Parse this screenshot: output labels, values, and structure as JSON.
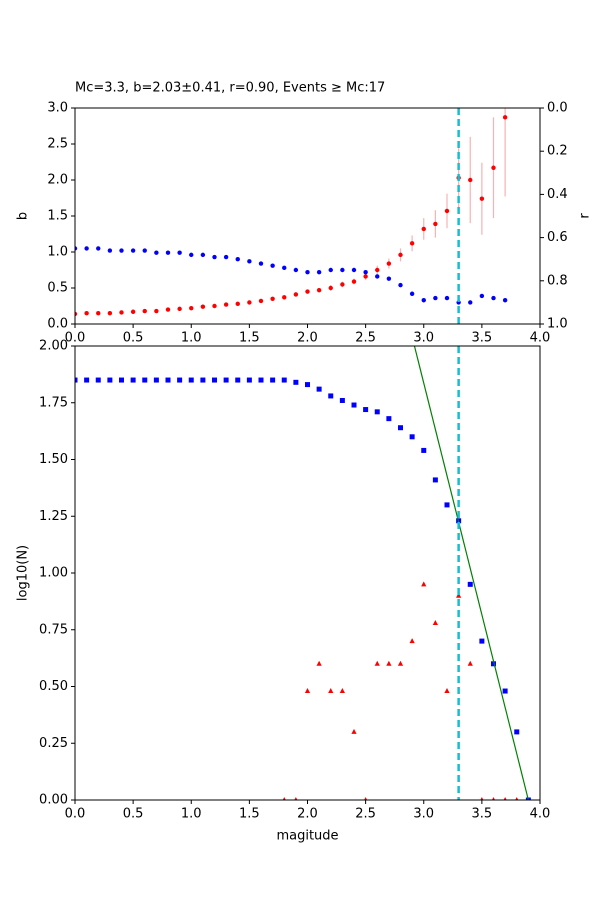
{
  "chart_data": [
    {
      "type": "scatter",
      "title": "Mc=3.3, b=2.03±0.41, r=0.90, Events ≥ Mc:17",
      "ylabel": "b",
      "y2label": "r",
      "xlim": [
        0,
        4
      ],
      "ylim": [
        0,
        3
      ],
      "y2lim": [
        1,
        0
      ],
      "xticks": [
        {
          "value": 0,
          "label": "0.0"
        },
        {
          "value": 0.5,
          "label": "0.5"
        },
        {
          "value": 1,
          "label": "1.0"
        },
        {
          "value": 1.5,
          "label": "1.5"
        },
        {
          "value": 2,
          "label": "2.0"
        },
        {
          "value": 2.5,
          "label": "2.5"
        },
        {
          "value": 3,
          "label": "3.0"
        },
        {
          "value": 3.5,
          "label": "3.5"
        },
        {
          "value": 4,
          "label": "4.0"
        }
      ],
      "yticks": [
        {
          "value": 0,
          "label": "0.0"
        },
        {
          "value": 0.5,
          "label": "0.5"
        },
        {
          "value": 1,
          "label": "1.0"
        },
        {
          "value": 1.5,
          "label": "1.5"
        },
        {
          "value": 2,
          "label": "2.0"
        },
        {
          "value": 2.5,
          "label": "2.5"
        },
        {
          "value": 3,
          "label": "3.0"
        }
      ],
      "y2ticks": [
        {
          "value": 0,
          "label": "0.0"
        },
        {
          "value": 0.2,
          "label": "0.2"
        },
        {
          "value": 0.4,
          "label": "0.4"
        },
        {
          "value": 0.6,
          "label": "0.6"
        },
        {
          "value": 0.8,
          "label": "0.8"
        },
        {
          "value": 1,
          "label": "1.0"
        }
      ],
      "vline": 3.3,
      "vline_color": "#17becf",
      "series": [
        {
          "marker": "o",
          "color": "#ff0000",
          "error_color": "#f6b3b3",
          "x": [
            0,
            0.1,
            0.2,
            0.3,
            0.4,
            0.5,
            0.6,
            0.7,
            0.8,
            0.9,
            1.0,
            1.1,
            1.2,
            1.3,
            1.4,
            1.5,
            1.6,
            1.7,
            1.8,
            1.9,
            2.0,
            2.1,
            2.2,
            2.3,
            2.4,
            2.5,
            2.6,
            2.7,
            2.8,
            2.9,
            3.0,
            3.1,
            3.2,
            3.3,
            3.4,
            3.5,
            3.6,
            3.7
          ],
          "values": [
            0.14,
            0.15,
            0.15,
            0.15,
            0.16,
            0.17,
            0.18,
            0.18,
            0.2,
            0.21,
            0.22,
            0.24,
            0.25,
            0.27,
            0.28,
            0.3,
            0.32,
            0.35,
            0.37,
            0.41,
            0.45,
            0.47,
            0.5,
            0.55,
            0.59,
            0.66,
            0.75,
            0.84,
            0.96,
            1.12,
            1.32,
            1.39,
            1.57,
            2.03,
            2.0,
            1.74,
            2.17,
            2.87
          ],
          "errors": [
            0.01,
            0.01,
            0.01,
            0.01,
            0.01,
            0.01,
            0.01,
            0.01,
            0.01,
            0.01,
            0.01,
            0.01,
            0.01,
            0.02,
            0.02,
            0.02,
            0.02,
            0.02,
            0.03,
            0.03,
            0.03,
            0.03,
            0.04,
            0.04,
            0.04,
            0.05,
            0.06,
            0.07,
            0.09,
            0.11,
            0.15,
            0.19,
            0.24,
            0.41,
            0.6,
            0.5,
            0.7,
            1.1
          ]
        },
        {
          "marker": "o",
          "color": "#0000ff",
          "axis": "y2",
          "x": [
            0,
            0.1,
            0.2,
            0.3,
            0.4,
            0.5,
            0.6,
            0.7,
            0.8,
            0.9,
            1.0,
            1.1,
            1.2,
            1.3,
            1.4,
            1.5,
            1.6,
            1.7,
            1.8,
            1.9,
            2.0,
            2.1,
            2.2,
            2.3,
            2.4,
            2.5,
            2.6,
            2.7,
            2.8,
            2.9,
            3.0,
            3.1,
            3.2,
            3.3,
            3.4,
            3.5,
            3.6,
            3.7
          ],
          "values": [
            0.65,
            0.65,
            0.65,
            0.66,
            0.66,
            0.66,
            0.66,
            0.67,
            0.67,
            0.67,
            0.68,
            0.68,
            0.69,
            0.69,
            0.7,
            0.71,
            0.72,
            0.73,
            0.74,
            0.75,
            0.76,
            0.76,
            0.75,
            0.75,
            0.75,
            0.76,
            0.78,
            0.79,
            0.82,
            0.86,
            0.89,
            0.88,
            0.88,
            0.9,
            0.9,
            0.87,
            0.88,
            0.89
          ]
        }
      ]
    },
    {
      "type": "scatter",
      "xlabel": "magitude",
      "ylabel": "log10(N)",
      "xlim": [
        0,
        4
      ],
      "ylim": [
        0,
        2
      ],
      "xticks": [
        {
          "value": 0,
          "label": "0.0"
        },
        {
          "value": 0.5,
          "label": "0.5"
        },
        {
          "value": 1,
          "label": "1.0"
        },
        {
          "value": 1.5,
          "label": "1.5"
        },
        {
          "value": 2,
          "label": "2.0"
        },
        {
          "value": 2.5,
          "label": "2.5"
        },
        {
          "value": 3,
          "label": "3.0"
        },
        {
          "value": 3.5,
          "label": "3.5"
        },
        {
          "value": 4,
          "label": "4.0"
        }
      ],
      "yticks": [
        {
          "value": 0,
          "label": "0.00"
        },
        {
          "value": 0.25,
          "label": "0.25"
        },
        {
          "value": 0.5,
          "label": "0.50"
        },
        {
          "value": 0.75,
          "label": "0.75"
        },
        {
          "value": 1,
          "label": "1.00"
        },
        {
          "value": 1.25,
          "label": "1.25"
        },
        {
          "value": 1.5,
          "label": "1.50"
        },
        {
          "value": 1.75,
          "label": "1.75"
        },
        {
          "value": 2,
          "label": "2.00"
        }
      ],
      "vline": 3.3,
      "vline_color": "#17becf",
      "series": [
        {
          "marker": "s",
          "color": "#0000ff",
          "x": [
            0,
            0.1,
            0.2,
            0.3,
            0.4,
            0.5,
            0.6,
            0.7,
            0.8,
            0.9,
            1.0,
            1.1,
            1.2,
            1.3,
            1.4,
            1.5,
            1.6,
            1.7,
            1.8,
            1.9,
            2.0,
            2.1,
            2.2,
            2.3,
            2.4,
            2.5,
            2.6,
            2.7,
            2.8,
            2.9,
            3.0,
            3.1,
            3.2,
            3.3,
            3.4,
            3.5,
            3.6,
            3.7,
            3.8,
            3.9
          ],
          "values": [
            1.85,
            1.85,
            1.85,
            1.85,
            1.85,
            1.85,
            1.85,
            1.85,
            1.85,
            1.85,
            1.85,
            1.85,
            1.85,
            1.85,
            1.85,
            1.85,
            1.85,
            1.85,
            1.85,
            1.84,
            1.83,
            1.81,
            1.78,
            1.76,
            1.74,
            1.72,
            1.71,
            1.68,
            1.64,
            1.6,
            1.54,
            1.41,
            1.3,
            1.23,
            0.95,
            0.7,
            0.6,
            0.48,
            0.3,
            0
          ]
        },
        {
          "marker": "^",
          "color": "#ff0000",
          "x": [
            1.8,
            1.9,
            2.0,
            2.1,
            2.2,
            2.3,
            2.4,
            2.5,
            2.6,
            2.7,
            2.8,
            2.9,
            3.0,
            3.1,
            3.2,
            3.3,
            3.4,
            3.5,
            3.6,
            3.7,
            3.8
          ],
          "values": [
            0,
            0,
            0.48,
            0.6,
            0.48,
            0.48,
            0.3,
            0,
            0.6,
            0.6,
            0.6,
            0.7,
            0.95,
            0.78,
            0.48,
            0.9,
            0.6,
            0,
            0,
            0,
            0
          ]
        },
        {
          "marker": "line",
          "color": "#008000",
          "x": [
            2.92,
            3.9
          ],
          "values": [
            2.0,
            0
          ]
        }
      ]
    }
  ]
}
